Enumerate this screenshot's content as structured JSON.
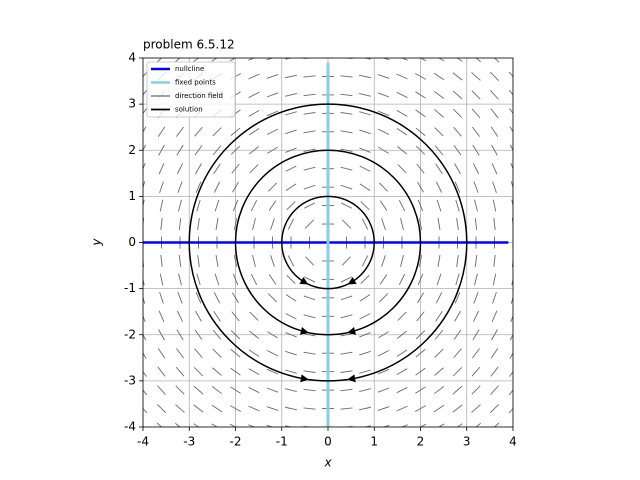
{
  "chart_data": {
    "type": "phase",
    "title": "problem 6.5.12",
    "x_label": "x",
    "y_label": "y",
    "xlim": [
      -4,
      4
    ],
    "ylim": [
      -4,
      4
    ],
    "xticks": [
      -4,
      -3,
      -2,
      -1,
      0,
      1,
      2,
      3,
      4
    ],
    "yticks": [
      -4,
      -3,
      -2,
      -1,
      0,
      1,
      2,
      3,
      4
    ],
    "grid": true,
    "legend": "upper left",
    "series": [
      {
        "name": "nullcline",
        "color": "#0000ff",
        "x": [
          -4,
          3.9
        ],
        "y": [
          0,
          0
        ]
      },
      {
        "name": "fixed points",
        "color": "#87ceeb",
        "x": [
          0,
          0
        ],
        "y": [
          -4,
          3.9
        ]
      },
      {
        "name": "direction field",
        "color": "#696969"
      },
      {
        "name": "solution",
        "color": "#000000",
        "radii": [
          1,
          2,
          3
        ]
      }
    ]
  }
}
